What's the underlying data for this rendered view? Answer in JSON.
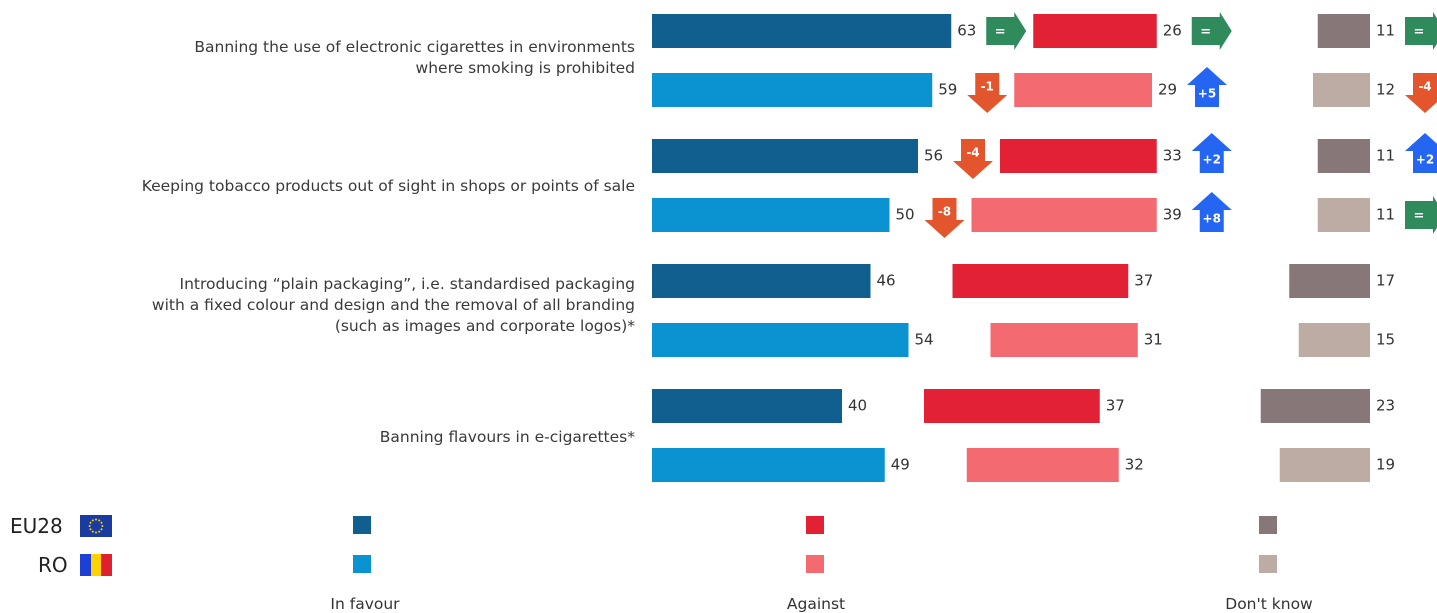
{
  "chart_data": {
    "type": "bar",
    "orientation": "horizontal",
    "stacked": false,
    "categories": [
      "Banning the use of electronic cigarettes in environments\nwhere smoking is prohibited",
      "Keeping tobacco products out of sight in shops or points of sale",
      "Introducing “plain packaging”, i.e. standardised packaging\nwith a fixed colour and design and the removal of all branding\n(such as images and corporate logos)*",
      "Banning flavours in e-cigarettes*"
    ],
    "groups": [
      "EU28",
      "RO"
    ],
    "response_categories": [
      "In favour",
      "Against",
      "Don't know"
    ],
    "values": {
      "EU28": [
        {
          "in_favour": 63,
          "against": 26,
          "dont_know": 11
        },
        {
          "in_favour": 56,
          "against": 33,
          "dont_know": 11
        },
        {
          "in_favour": 46,
          "against": 37,
          "dont_know": 17
        },
        {
          "in_favour": 40,
          "against": 37,
          "dont_know": 23
        }
      ],
      "RO": [
        {
          "in_favour": 59,
          "against": 29,
          "dont_know": 12
        },
        {
          "in_favour": 50,
          "against": 39,
          "dont_know": 11
        },
        {
          "in_favour": 54,
          "against": 31,
          "dont_know": 15
        },
        {
          "in_favour": 49,
          "against": 32,
          "dont_know": 19
        }
      ]
    },
    "changes": {
      "EU28": [
        {
          "in_favour": "=",
          "against": "=",
          "dont_know": "="
        },
        {
          "in_favour": "-4",
          "against": "+2",
          "dont_know": "+2"
        },
        null,
        null
      ],
      "RO": [
        {
          "in_favour": "-1",
          "against": "+5",
          "dont_know": "-4"
        },
        {
          "in_favour": "-8",
          "against": "+8",
          "dont_know": "="
        },
        null,
        null
      ]
    },
    "colors": {
      "EU28": {
        "in_favour": "#105f8e",
        "against": "#e32134",
        "dont_know": "#887778"
      },
      "RO": {
        "in_favour": "#0b93d1",
        "against": "#f46a71",
        "dont_know": "#bcaca3"
      },
      "change_equal": "#2f8a5c",
      "change_down": "#e3552c",
      "change_up": "#2466f2"
    },
    "legend_position": "bottom"
  },
  "legend": {
    "eu_label": "EU28",
    "ro_label": "RO"
  }
}
